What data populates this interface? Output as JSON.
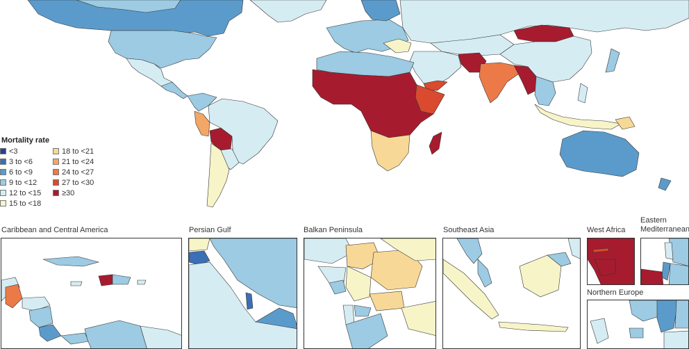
{
  "legend": {
    "title": "Mortality rate",
    "items": [
      {
        "label": "<3",
        "color": "#2c3f8e"
      },
      {
        "label": "3 to <6",
        "color": "#3b6fb6"
      },
      {
        "label": "6 to <9",
        "color": "#5b9bcc"
      },
      {
        "label": "9 to <12",
        "color": "#9ccbe3"
      },
      {
        "label": "12 to <15",
        "color": "#d6ecf3"
      },
      {
        "label": "15 to <18",
        "color": "#f7f4c8"
      },
      {
        "label": "18 to <21",
        "color": "#f7d896"
      },
      {
        "label": "21 to <24",
        "color": "#f2a766"
      },
      {
        "label": "24 to <27",
        "color": "#ec7a48"
      },
      {
        "label": "27 to <30",
        "color": "#d94a2e"
      },
      {
        "label": "≥30",
        "color": "#a61c2e"
      }
    ]
  },
  "insets": [
    {
      "id": "caribbean",
      "title": "Caribbean and Central America"
    },
    {
      "id": "persian-gulf",
      "title": "Persian Gulf"
    },
    {
      "id": "balkan",
      "title": "Balkan Peninsula"
    },
    {
      "id": "southeast-asia",
      "title": "Southeast Asia"
    },
    {
      "id": "west-africa",
      "title": "West Africa"
    },
    {
      "id": "eastern-med",
      "title": "Eastern\nMediterranean"
    },
    {
      "id": "northern-europe",
      "title": "Northern Europe"
    }
  ]
}
